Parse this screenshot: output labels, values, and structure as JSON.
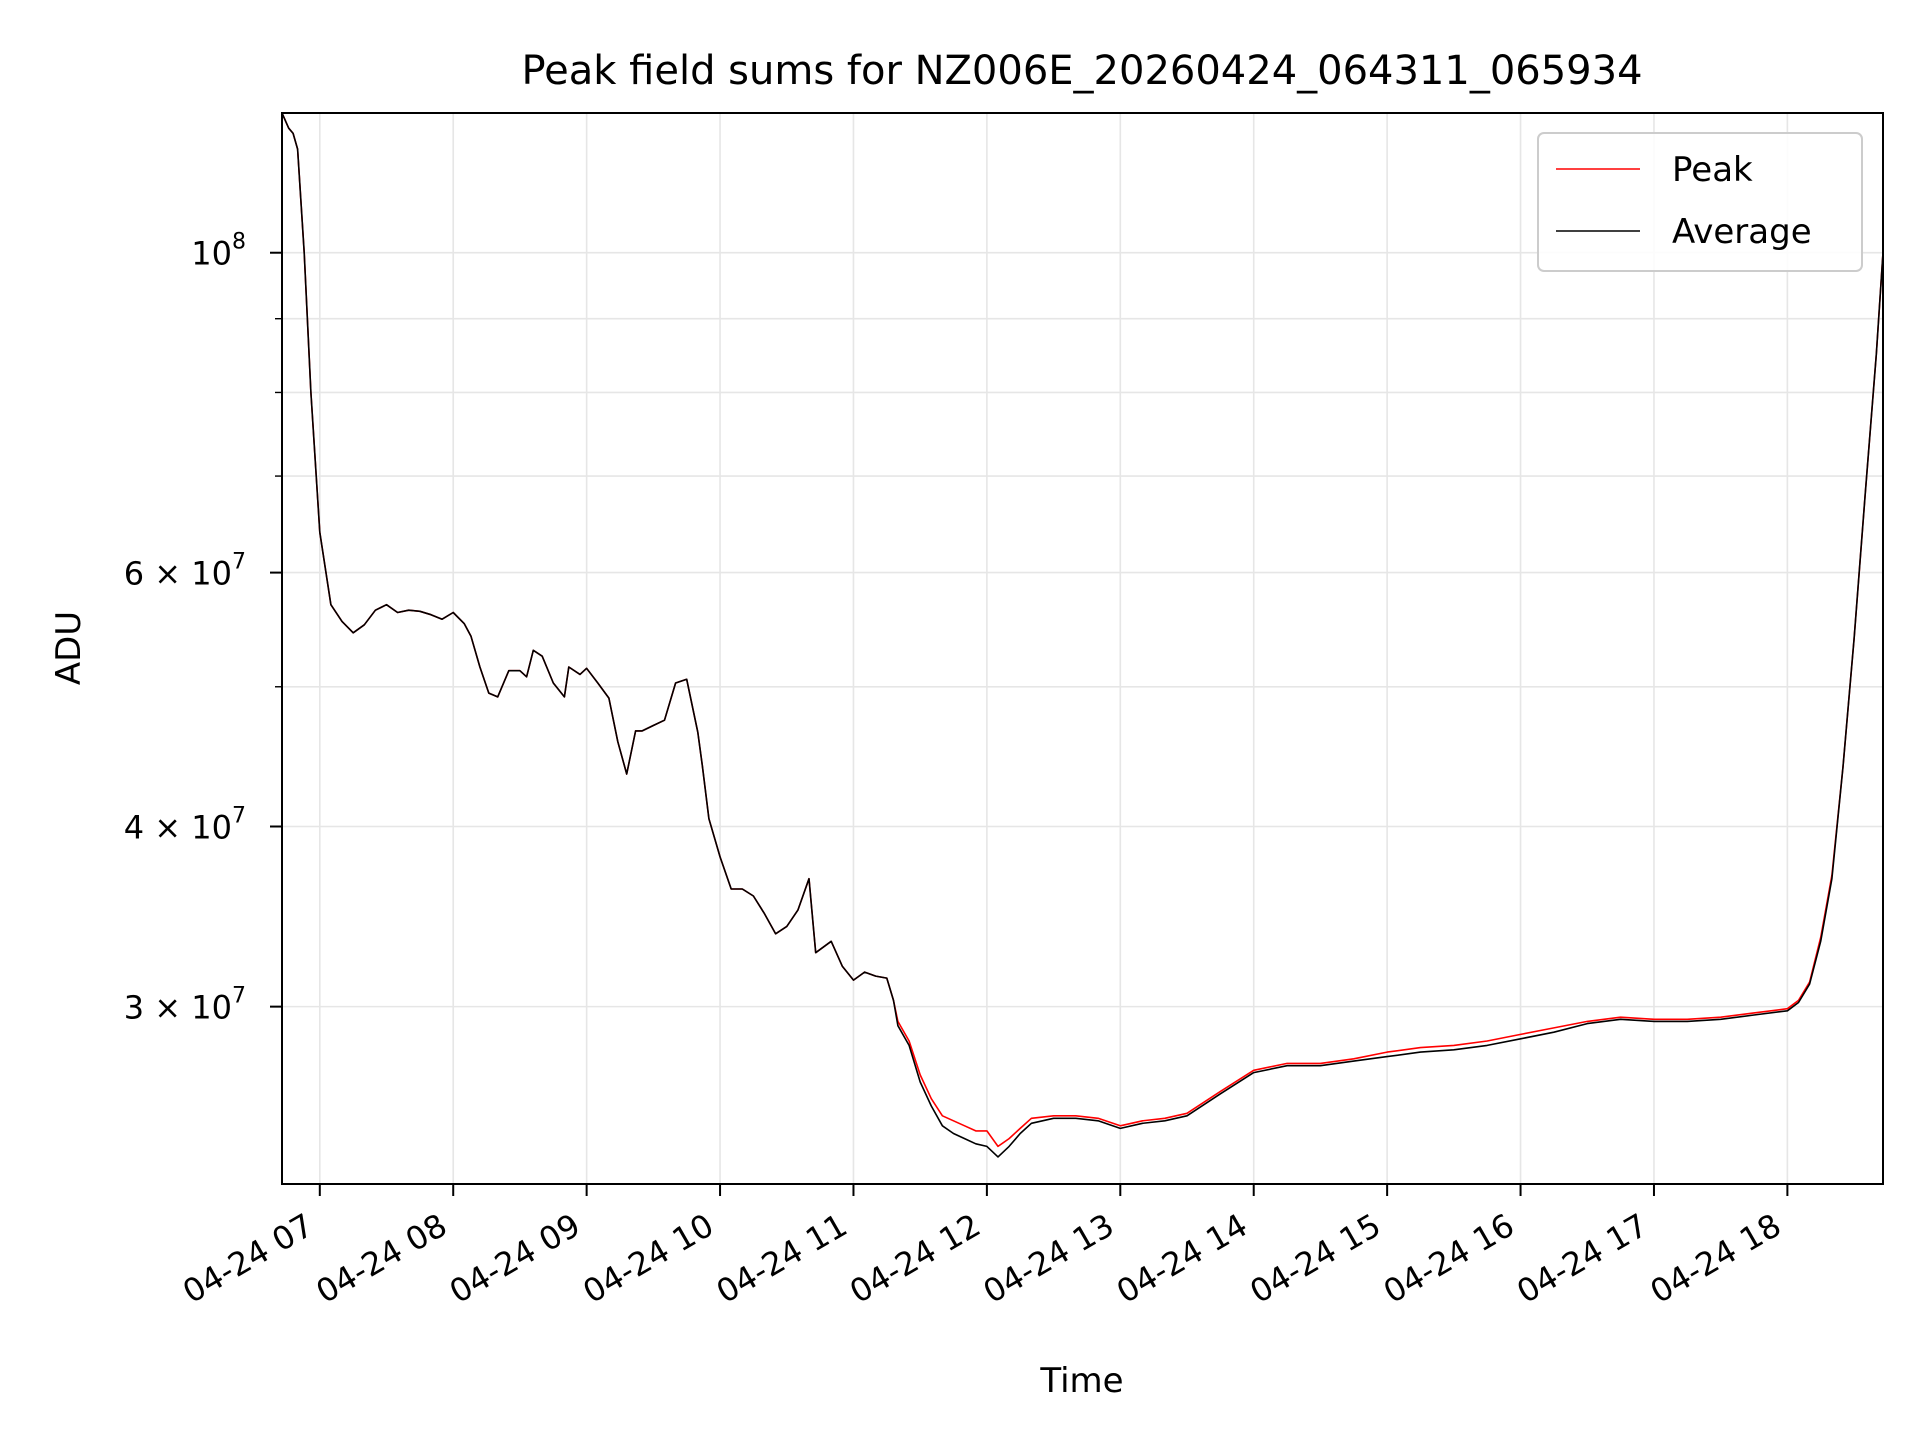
{
  "chart_data": {
    "type": "line",
    "title": "Peak field sums for NZ006E_20260424_064311_065934",
    "xlabel": "Time",
    "ylabel": "ADU",
    "x_is_time": true,
    "xlim": [
      "2026-04-24 06:43",
      "2026-04-24 18:43"
    ],
    "ylim": [
      22600000,
      125000000
    ],
    "y_scale": "log",
    "grid": true,
    "legend_position": "top-right",
    "x_ticks": [
      {
        "label": "04-24 07",
        "value": "2026-04-24 07:00"
      },
      {
        "label": "04-24 08",
        "value": "2026-04-24 08:00"
      },
      {
        "label": "04-24 09",
        "value": "2026-04-24 09:00"
      },
      {
        "label": "04-24 10",
        "value": "2026-04-24 10:00"
      },
      {
        "label": "04-24 11",
        "value": "2026-04-24 11:00"
      },
      {
        "label": "04-24 12",
        "value": "2026-04-24 12:00"
      },
      {
        "label": "04-24 13",
        "value": "2026-04-24 13:00"
      },
      {
        "label": "04-24 14",
        "value": "2026-04-24 14:00"
      },
      {
        "label": "04-24 15",
        "value": "2026-04-24 15:00"
      },
      {
        "label": "04-24 16",
        "value": "2026-04-24 16:00"
      },
      {
        "label": "04-24 17",
        "value": "2026-04-24 17:00"
      },
      {
        "label": "04-24 18",
        "value": "2026-04-24 18:00"
      }
    ],
    "y_major_ticks": [
      {
        "value": 100000000,
        "base": "10",
        "exp": "8"
      },
      {
        "value": 60000000,
        "base": "6 × 10",
        "exp": "7"
      },
      {
        "value": 40000000,
        "base": "4 × 10",
        "exp": "7"
      },
      {
        "value": 30000000,
        "base": "3 × 10",
        "exp": "7"
      }
    ],
    "y_minor_ticks": [
      90000000,
      80000000,
      70000000,
      50000000
    ],
    "series": [
      {
        "name": "Peak",
        "color": "#ff0000",
        "x": [
          "2026-04-24 06:43",
          "2026-04-24 06:46",
          "2026-04-24 06:48",
          "2026-04-24 06:50",
          "2026-04-24 06:53",
          "2026-04-24 06:56",
          "2026-04-24 07:00",
          "2026-04-24 07:05",
          "2026-04-24 07:10",
          "2026-04-24 07:15",
          "2026-04-24 07:20",
          "2026-04-24 07:25",
          "2026-04-24 07:30",
          "2026-04-24 07:35",
          "2026-04-24 07:40",
          "2026-04-24 07:45",
          "2026-04-24 07:50",
          "2026-04-24 07:55",
          "2026-04-24 08:00",
          "2026-04-24 08:05",
          "2026-04-24 08:08",
          "2026-04-24 08:12",
          "2026-04-24 08:16",
          "2026-04-24 08:20",
          "2026-04-24 08:25",
          "2026-04-24 08:30",
          "2026-04-24 08:33",
          "2026-04-24 08:36",
          "2026-04-24 08:40",
          "2026-04-24 08:45",
          "2026-04-24 08:50",
          "2026-04-24 08:52",
          "2026-04-24 08:57",
          "2026-04-24 09:00",
          "2026-04-24 09:05",
          "2026-04-24 09:10",
          "2026-04-24 09:14",
          "2026-04-24 09:18",
          "2026-04-24 09:22",
          "2026-04-24 09:25",
          "2026-04-24 09:30",
          "2026-04-24 09:35",
          "2026-04-24 09:40",
          "2026-04-24 09:45",
          "2026-04-24 09:50",
          "2026-04-24 09:52",
          "2026-04-24 09:55",
          "2026-04-24 10:00",
          "2026-04-24 10:05",
          "2026-04-24 10:10",
          "2026-04-24 10:15",
          "2026-04-24 10:20",
          "2026-04-24 10:25",
          "2026-04-24 10:30",
          "2026-04-24 10:35",
          "2026-04-24 10:40",
          "2026-04-24 10:43",
          "2026-04-24 10:50",
          "2026-04-24 10:55",
          "2026-04-24 11:00",
          "2026-04-24 11:05",
          "2026-04-24 11:10",
          "2026-04-24 11:15",
          "2026-04-24 11:18",
          "2026-04-24 11:20",
          "2026-04-24 11:25",
          "2026-04-24 11:30",
          "2026-04-24 11:35",
          "2026-04-24 11:40",
          "2026-04-24 11:45",
          "2026-04-24 11:50",
          "2026-04-24 11:55",
          "2026-04-24 12:00",
          "2026-04-24 12:05",
          "2026-04-24 12:10",
          "2026-04-24 12:15",
          "2026-04-24 12:20",
          "2026-04-24 12:30",
          "2026-04-24 12:40",
          "2026-04-24 12:50",
          "2026-04-24 13:00",
          "2026-04-24 13:10",
          "2026-04-24 13:20",
          "2026-04-24 13:30",
          "2026-04-24 13:45",
          "2026-04-24 14:00",
          "2026-04-24 14:15",
          "2026-04-24 14:30",
          "2026-04-24 14:45",
          "2026-04-24 15:00",
          "2026-04-24 15:15",
          "2026-04-24 15:30",
          "2026-04-24 15:45",
          "2026-04-24 16:00",
          "2026-04-24 16:15",
          "2026-04-24 16:30",
          "2026-04-24 16:45",
          "2026-04-24 17:00",
          "2026-04-24 17:15",
          "2026-04-24 17:30",
          "2026-04-24 17:45",
          "2026-04-24 18:00",
          "2026-04-24 18:05",
          "2026-04-24 18:10",
          "2026-04-24 18:15",
          "2026-04-24 18:20",
          "2026-04-24 18:25",
          "2026-04-24 18:30",
          "2026-04-24 18:35",
          "2026-04-24 18:40",
          "2026-04-24 18:43"
        ],
        "values": [
          125000000,
          122000000,
          121000000,
          118000000,
          100000000,
          80000000,
          64000000,
          57000000,
          55500000,
          54500000,
          55200000,
          56500000,
          57000000,
          56300000,
          56500000,
          56400000,
          56100000,
          55700000,
          56300000,
          55300000,
          54200000,
          51600000,
          49500000,
          49200000,
          51300000,
          51300000,
          50800000,
          53000000,
          52500000,
          50300000,
          49200000,
          51600000,
          51000000,
          51500000,
          50300000,
          49100000,
          45800000,
          43500000,
          46600000,
          46600000,
          47000000,
          47400000,
          50300000,
          50600000,
          46500000,
          44100000,
          40500000,
          38100000,
          36200000,
          36200000,
          35800000,
          34800000,
          33700000,
          34100000,
          35000000,
          36800000,
          32700000,
          33300000,
          32000000,
          31300000,
          31700000,
          31500000,
          31400000,
          30300000,
          29300000,
          28400000,
          26900000,
          25900000,
          25200000,
          25000000,
          24800000,
          24600000,
          24600000,
          24000000,
          24300000,
          24700000,
          25100000,
          25200000,
          25200000,
          25100000,
          24800000,
          25000000,
          25100000,
          25300000,
          26200000,
          27100000,
          27400000,
          27400000,
          27600000,
          27900000,
          28100000,
          28200000,
          28400000,
          28700000,
          29000000,
          29300000,
          29500000,
          29400000,
          29400000,
          29500000,
          29700000,
          29900000,
          30300000,
          31200000,
          33500000,
          37000000,
          44000000,
          54000000,
          68000000,
          85000000,
          100000000
        ]
      },
      {
        "name": "Average",
        "color": "#000000",
        "x": [
          "2026-04-24 06:43",
          "2026-04-24 06:46",
          "2026-04-24 06:48",
          "2026-04-24 06:50",
          "2026-04-24 06:53",
          "2026-04-24 06:56",
          "2026-04-24 07:00",
          "2026-04-24 07:05",
          "2026-04-24 07:10",
          "2026-04-24 07:15",
          "2026-04-24 07:20",
          "2026-04-24 07:25",
          "2026-04-24 07:30",
          "2026-04-24 07:35",
          "2026-04-24 07:40",
          "2026-04-24 07:45",
          "2026-04-24 07:50",
          "2026-04-24 07:55",
          "2026-04-24 08:00",
          "2026-04-24 08:05",
          "2026-04-24 08:08",
          "2026-04-24 08:12",
          "2026-04-24 08:16",
          "2026-04-24 08:20",
          "2026-04-24 08:25",
          "2026-04-24 08:30",
          "2026-04-24 08:33",
          "2026-04-24 08:36",
          "2026-04-24 08:40",
          "2026-04-24 08:45",
          "2026-04-24 08:50",
          "2026-04-24 08:52",
          "2026-04-24 08:57",
          "2026-04-24 09:00",
          "2026-04-24 09:05",
          "2026-04-24 09:10",
          "2026-04-24 09:14",
          "2026-04-24 09:18",
          "2026-04-24 09:22",
          "2026-04-24 09:25",
          "2026-04-24 09:30",
          "2026-04-24 09:35",
          "2026-04-24 09:40",
          "2026-04-24 09:45",
          "2026-04-24 09:50",
          "2026-04-24 09:52",
          "2026-04-24 09:55",
          "2026-04-24 10:00",
          "2026-04-24 10:05",
          "2026-04-24 10:10",
          "2026-04-24 10:15",
          "2026-04-24 10:20",
          "2026-04-24 10:25",
          "2026-04-24 10:30",
          "2026-04-24 10:35",
          "2026-04-24 10:40",
          "2026-04-24 10:43",
          "2026-04-24 10:50",
          "2026-04-24 10:55",
          "2026-04-24 11:00",
          "2026-04-24 11:05",
          "2026-04-24 11:10",
          "2026-04-24 11:15",
          "2026-04-24 11:18",
          "2026-04-24 11:20",
          "2026-04-24 11:25",
          "2026-04-24 11:30",
          "2026-04-24 11:35",
          "2026-04-24 11:40",
          "2026-04-24 11:45",
          "2026-04-24 11:50",
          "2026-04-24 11:55",
          "2026-04-24 12:00",
          "2026-04-24 12:05",
          "2026-04-24 12:10",
          "2026-04-24 12:15",
          "2026-04-24 12:20",
          "2026-04-24 12:30",
          "2026-04-24 12:40",
          "2026-04-24 12:50",
          "2026-04-24 13:00",
          "2026-04-24 13:10",
          "2026-04-24 13:20",
          "2026-04-24 13:30",
          "2026-04-24 13:45",
          "2026-04-24 14:00",
          "2026-04-24 14:15",
          "2026-04-24 14:30",
          "2026-04-24 14:45",
          "2026-04-24 15:00",
          "2026-04-24 15:15",
          "2026-04-24 15:30",
          "2026-04-24 15:45",
          "2026-04-24 16:00",
          "2026-04-24 16:15",
          "2026-04-24 16:30",
          "2026-04-24 16:45",
          "2026-04-24 17:00",
          "2026-04-24 17:15",
          "2026-04-24 17:30",
          "2026-04-24 17:45",
          "2026-04-24 18:00",
          "2026-04-24 18:05",
          "2026-04-24 18:10",
          "2026-04-24 18:15",
          "2026-04-24 18:20",
          "2026-04-24 18:25",
          "2026-04-24 18:30",
          "2026-04-24 18:35",
          "2026-04-24 18:40",
          "2026-04-24 18:43"
        ],
        "values": [
          125000000,
          122000000,
          121000000,
          118000000,
          100000000,
          80000000,
          64000000,
          57000000,
          55500000,
          54500000,
          55200000,
          56500000,
          57000000,
          56300000,
          56500000,
          56400000,
          56100000,
          55700000,
          56300000,
          55300000,
          54200000,
          51600000,
          49500000,
          49200000,
          51300000,
          51300000,
          50800000,
          53000000,
          52500000,
          50300000,
          49200000,
          51600000,
          51000000,
          51500000,
          50300000,
          49100000,
          45800000,
          43500000,
          46600000,
          46600000,
          47000000,
          47400000,
          50300000,
          50600000,
          46500000,
          44100000,
          40500000,
          38100000,
          36200000,
          36200000,
          35800000,
          34800000,
          33700000,
          34100000,
          35000000,
          36800000,
          32700000,
          33300000,
          32000000,
          31300000,
          31700000,
          31500000,
          31400000,
          30300000,
          29100000,
          28200000,
          26600000,
          25600000,
          24800000,
          24500000,
          24300000,
          24100000,
          24000000,
          23600000,
          24000000,
          24500000,
          24900000,
          25100000,
          25100000,
          25000000,
          24700000,
          24900000,
          25000000,
          25200000,
          26100000,
          27000000,
          27300000,
          27300000,
          27500000,
          27700000,
          27900000,
          28000000,
          28200000,
          28500000,
          28800000,
          29200000,
          29400000,
          29300000,
          29300000,
          29400000,
          29600000,
          29800000,
          30200000,
          31100000,
          33300000,
          36800000,
          44000000,
          54000000,
          68000000,
          85000000,
          100000000
        ]
      }
    ]
  }
}
